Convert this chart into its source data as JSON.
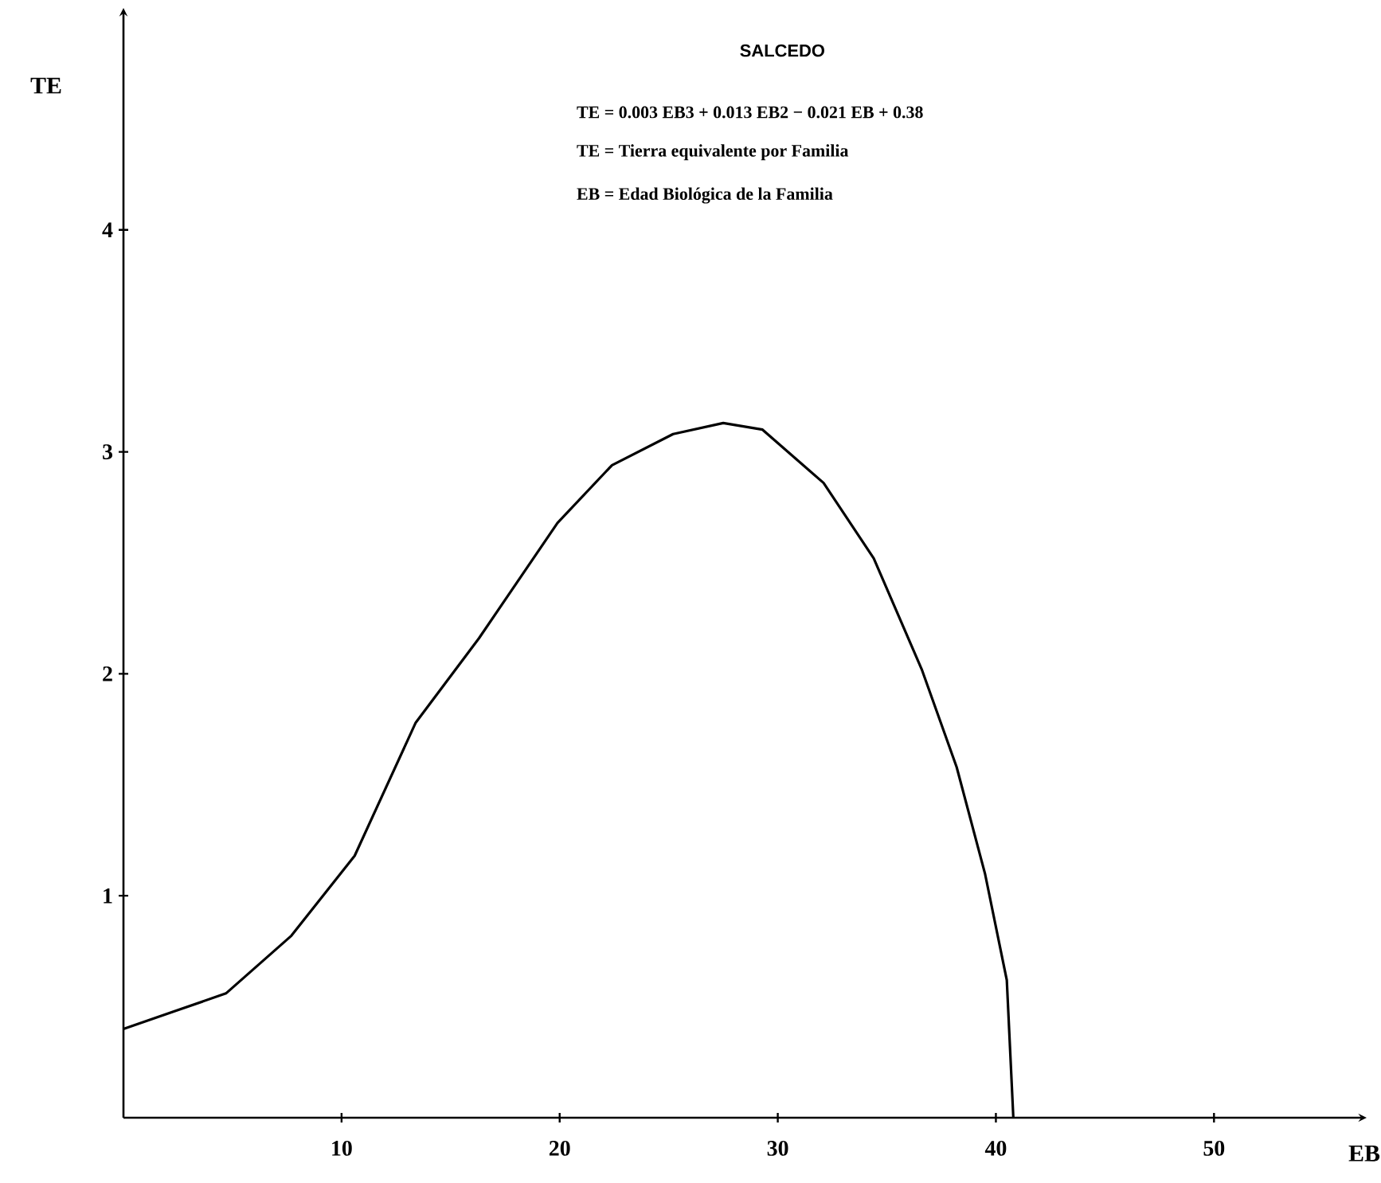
{
  "chart_data": {
    "type": "line",
    "title": "SALCEDO",
    "xlabel": "EB",
    "ylabel": "TE",
    "annotations": [
      "TE = 0.003 EB3 + 0.013 EB2 − 0.021 EB + 0.38",
      "TE = Tierra equivalente por Familia",
      "EB = Edad Biológica de la Familia"
    ],
    "x": [
      0,
      4.7,
      7.7,
      10.6,
      13.4,
      16.3,
      19.9,
      22.4,
      25.2,
      27.5,
      29.3,
      32.1,
      34.4,
      36.6,
      38.2,
      39.5,
      40.5,
      40.8
    ],
    "series": [
      {
        "color": "#000000",
        "line_style": "solid",
        "values": [
          0.4,
          0.56,
          0.82,
          1.18,
          1.78,
          2.16,
          2.68,
          2.94,
          3.08,
          3.13,
          3.1,
          2.86,
          2.52,
          2.02,
          1.58,
          1.1,
          0.62,
          0.0
        ]
      }
    ],
    "xlim": [
      0,
      57
    ],
    "ylim": [
      0,
      5
    ],
    "xticks": [
      10,
      20,
      30,
      40,
      50
    ],
    "yticks": [
      1,
      2,
      3,
      4
    ]
  }
}
